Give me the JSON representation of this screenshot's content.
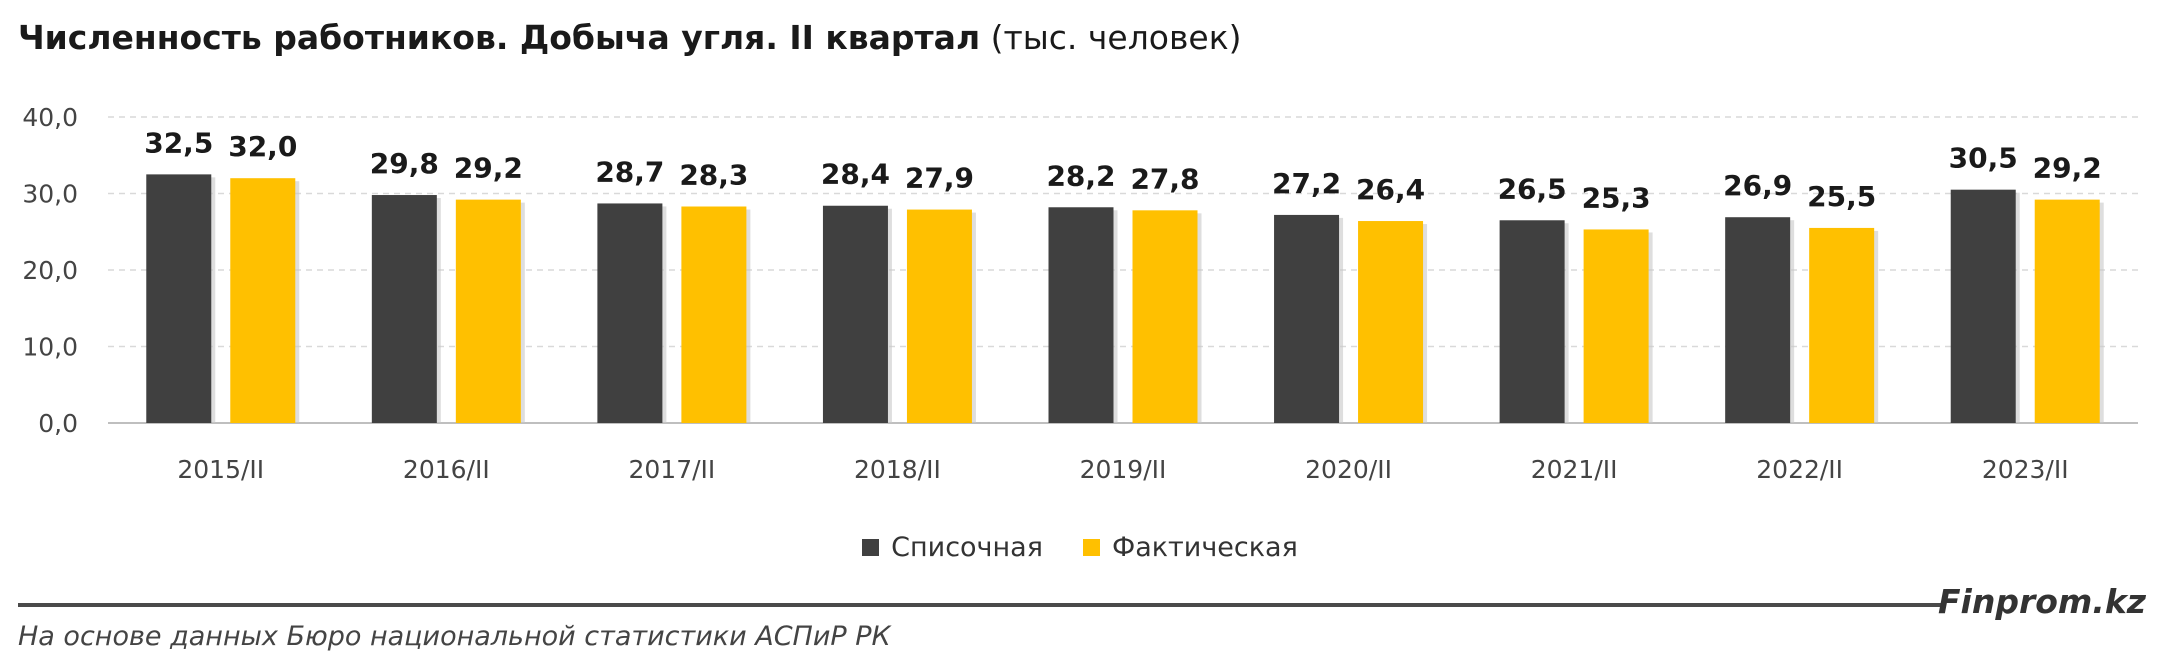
{
  "title": {
    "main": "Численность работников. Добыча угля. II квартал",
    "unit": "(тыс. человек)"
  },
  "legend": {
    "items": [
      {
        "label": "Списочная",
        "color": "#404040"
      },
      {
        "label": "Фактическая",
        "color": "#FFC000"
      }
    ]
  },
  "footer": {
    "brand": "Finprom.kz",
    "source": "На основе данных Бюро национальной статистики АСПиР РК"
  },
  "chart_data": {
    "type": "bar",
    "categories": [
      "2015/II",
      "2016/II",
      "2017/II",
      "2018/II",
      "2019/II",
      "2020/II",
      "2021/II",
      "2022/II",
      "2023/II"
    ],
    "series": [
      {
        "name": "Списочная",
        "color": "#404040",
        "values": [
          32.5,
          29.8,
          28.7,
          28.4,
          28.2,
          27.2,
          26.5,
          26.9,
          30.5
        ],
        "labels": [
          "32,5",
          "29,8",
          "28,7",
          "28,4",
          "28,2",
          "27,2",
          "26,5",
          "26,9",
          "30,5"
        ]
      },
      {
        "name": "Фактическая",
        "color": "#FFC000",
        "values": [
          32.0,
          29.2,
          28.3,
          27.9,
          27.8,
          26.4,
          25.3,
          25.5,
          29.2
        ],
        "labels": [
          "32,0",
          "29,2",
          "28,3",
          "27,9",
          "27,8",
          "26,4",
          "25,3",
          "25,5",
          "29,2"
        ]
      }
    ],
    "yticks": [
      "0,0",
      "10,0",
      "20,0",
      "30,0",
      "40,0"
    ],
    "ylim": [
      0,
      40
    ],
    "grid": true,
    "legend_position": "bottom"
  }
}
